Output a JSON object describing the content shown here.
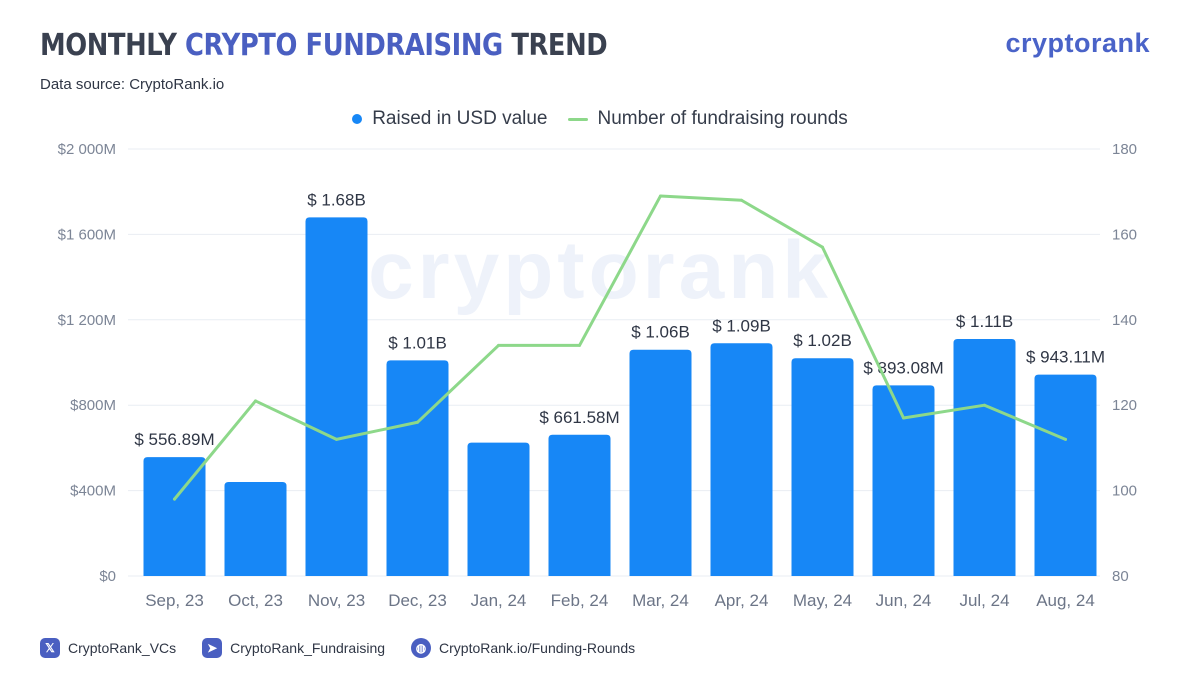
{
  "header": {
    "title_part1": "MONTHLY ",
    "title_highlight": "CRYPTO FUNDRAISING",
    "title_part3": " TREND",
    "subtitle": "Data source: CryptoRank.io",
    "logo": "cryptorank",
    "watermark": "cryptorank"
  },
  "colors": {
    "bar": "#1787f6",
    "line": "#8dd88a",
    "accent": "#4a5fc1"
  },
  "chart_data": {
    "type": "bar",
    "categories": [
      "Sep, 23",
      "Oct, 23",
      "Nov, 23",
      "Dec, 23",
      "Jan, 24",
      "Feb, 24",
      "Mar, 24",
      "Apr, 24",
      "May, 24",
      "Jun, 24",
      "Jul, 24",
      "Aug, 24"
    ],
    "series": [
      {
        "name": "Raised in USD value",
        "type": "bar",
        "axis": "left",
        "values": [
          556.89,
          440,
          1680,
          1010,
          625,
          661.58,
          1060,
          1090,
          1020,
          893.08,
          1110,
          943.11
        ],
        "data_labels": [
          "$ 556.89M",
          "",
          "$ 1.68B",
          "$ 1.01B",
          "",
          "$ 661.58M",
          "$ 1.06B",
          "$ 1.09B",
          "$ 1.02B",
          "$ 893.08M",
          "$ 1.11B",
          "$ 943.11M"
        ]
      },
      {
        "name": "Number of fundraising rounds",
        "type": "line",
        "axis": "right",
        "values": [
          98,
          121,
          112,
          116,
          134,
          134,
          169,
          168,
          157,
          117,
          120,
          112
        ]
      }
    ],
    "y_left": {
      "min": 0,
      "max": 2000,
      "ticks": [
        0,
        400,
        800,
        1200,
        1600,
        2000
      ],
      "tick_labels": [
        "$0",
        "$400M",
        "$800M",
        "$1 200M",
        "$1 600M",
        "$2 000M"
      ]
    },
    "y_right": {
      "min": 80,
      "max": 180,
      "ticks": [
        80,
        100,
        120,
        140,
        160,
        180
      ],
      "tick_labels": [
        "80",
        "100",
        "120",
        "140",
        "160",
        "180"
      ]
    },
    "grid": true,
    "legend": "top-center"
  },
  "footer": {
    "links": [
      {
        "icon": "x-icon",
        "glyph": "𝕏",
        "label": "CryptoRank_VCs"
      },
      {
        "icon": "telegram-icon",
        "glyph": "➤",
        "label": "CryptoRank_Fundraising"
      },
      {
        "icon": "globe-icon",
        "glyph": "◍",
        "label": "CryptoRank.io/Funding-Rounds"
      }
    ]
  }
}
